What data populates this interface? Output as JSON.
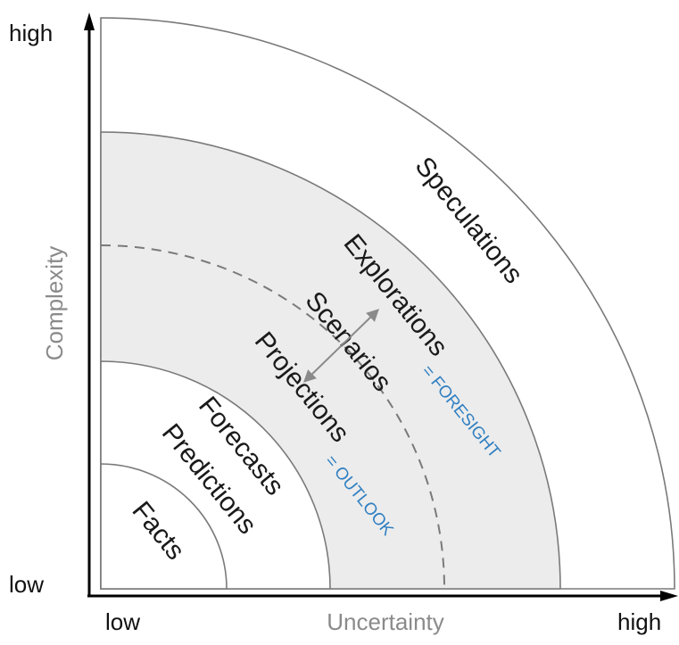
{
  "axes": {
    "y_title": "Complexity",
    "x_title": "Uncertainty",
    "y_high": "high",
    "y_low": "low",
    "x_low": "low",
    "x_high": "high"
  },
  "bands": {
    "facts": "Facts",
    "predictions": "Predictions",
    "forecasts": "Forecasts",
    "projections": "Projections",
    "scenarios": "Scenarios",
    "explorations": "Explorations",
    "speculations": "Speculations"
  },
  "notes": {
    "outlook": "= OUTLOOK",
    "foresight": "= FORESIGHT"
  },
  "colors": {
    "shaded_band": "#ececec",
    "ring_stroke": "#7a7a7a",
    "note_blue": "#2f7fc1",
    "axis": "#000000"
  }
}
